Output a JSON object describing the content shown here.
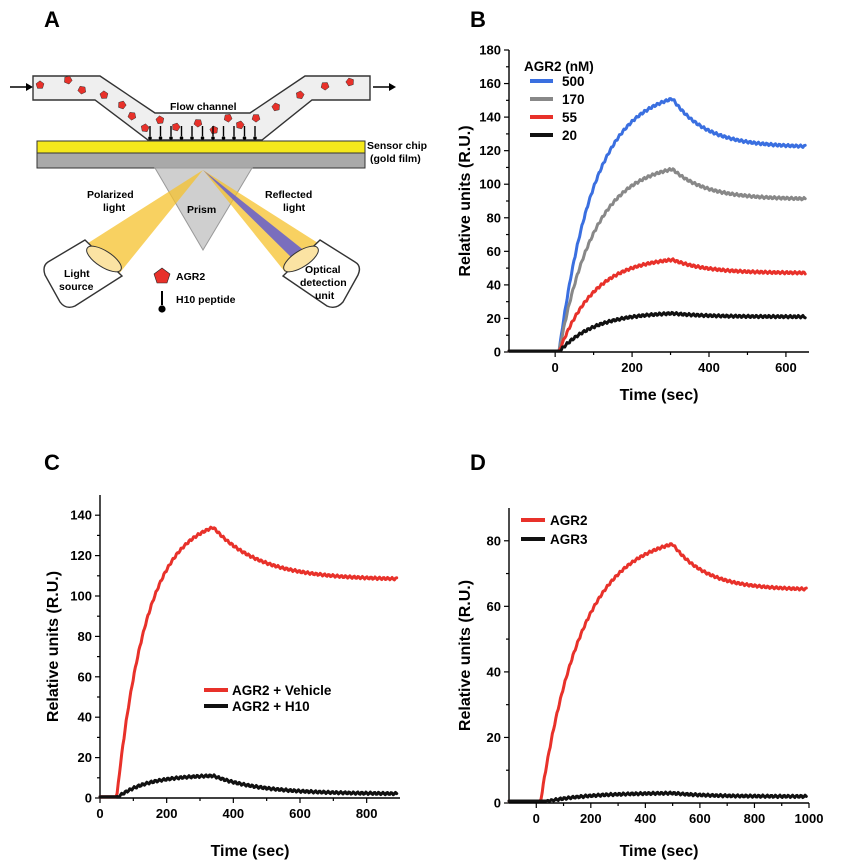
{
  "panel_letters": {
    "a": "A",
    "b": "B",
    "c": "C",
    "d": "D"
  },
  "diagram": {
    "flow_channel": "Flow channel",
    "sensor_chip_line1": "Sensor chip",
    "sensor_chip_line2": "(gold film)",
    "polarized_line1": "Polarized",
    "polarized_line2": "light",
    "reflected_line1": "Reflected",
    "reflected_line2": "light",
    "prism": "Prism",
    "light_source_line1": "Light",
    "light_source_line2": "source",
    "optical_line1": "Optical",
    "optical_line2": "detection",
    "optical_line3": "unit",
    "legend_agr2": "AGR2",
    "legend_h10": "H10 peptide",
    "colors": {
      "agr2": "#e8312a",
      "gold": "#f5e81c",
      "beam": "#f6c12c",
      "reflected_beam": "#6b63c8",
      "prism": "#c8c8c8"
    }
  },
  "chart_data": [
    {
      "panel": "B",
      "type": "line",
      "xlabel": "Time (sec)",
      "ylabel": "Relative units (R.U.)",
      "xlim": [
        -120,
        660
      ],
      "ylim": [
        0,
        180
      ],
      "xticks": [
        0,
        200,
        400,
        600
      ],
      "yticks": [
        0,
        20,
        40,
        60,
        80,
        100,
        120,
        140,
        160,
        180
      ],
      "legend_title": "AGR2 (nM)",
      "legend_position": "top-left",
      "assoc_start": 10,
      "assoc_end": 305,
      "series": [
        {
          "name": "500",
          "color": "#3a6fe0",
          "peak": 151,
          "end": 122
        },
        {
          "name": "170",
          "color": "#888888",
          "peak": 109,
          "end": 91
        },
        {
          "name": "55",
          "color": "#e8312a",
          "peak": 55,
          "end": 47
        },
        {
          "name": "20",
          "color": "#111111",
          "peak": 23,
          "end": 21
        }
      ]
    },
    {
      "panel": "C",
      "type": "line",
      "xlabel": "Time (sec)",
      "ylabel": "Relative units (R.U.)",
      "xlim": [
        0,
        900
      ],
      "ylim": [
        0,
        150
      ],
      "xticks": [
        0,
        200,
        400,
        600,
        800
      ],
      "yticks": [
        0,
        20,
        40,
        60,
        80,
        100,
        120,
        140
      ],
      "legend_position": "center-right",
      "assoc_start": 50,
      "assoc_end": 340,
      "series": [
        {
          "name": "AGR2 + Vehicle",
          "color": "#e8312a",
          "peak": 134,
          "end": 108
        },
        {
          "name": "AGR2 + H10",
          "color": "#111111",
          "peak": 11,
          "end": 2
        }
      ]
    },
    {
      "panel": "D",
      "type": "line",
      "xlabel": "Time (sec)",
      "ylabel": "Relative units (R.U.)",
      "xlim": [
        -100,
        1000
      ],
      "ylim": [
        0,
        90
      ],
      "xticks": [
        0,
        200,
        400,
        600,
        800,
        1000
      ],
      "yticks": [
        0,
        20,
        40,
        60,
        80
      ],
      "legend_position": "top-left",
      "assoc_start": 15,
      "assoc_end": 500,
      "series": [
        {
          "name": "AGR2",
          "color": "#e8312a",
          "peak": 79,
          "end": 65
        },
        {
          "name": "AGR3",
          "color": "#111111",
          "peak": 3,
          "end": 2
        }
      ]
    }
  ]
}
